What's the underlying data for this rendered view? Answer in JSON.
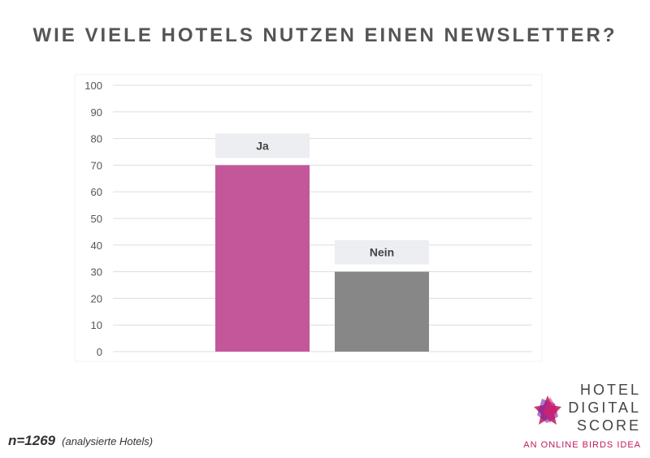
{
  "title": "WIE VIELE HOTELS NUTZEN EINEN NEWSLETTER?",
  "chart_data": {
    "type": "bar",
    "categories": [
      "Ja",
      "Nein"
    ],
    "values": [
      70,
      30
    ],
    "ylim": [
      0,
      100
    ],
    "yticks": [
      0,
      10,
      20,
      30,
      40,
      50,
      60,
      70,
      80,
      90,
      100
    ],
    "grid": true,
    "legend": "none",
    "colors": [
      "#c4579a",
      "#878787"
    ],
    "label_box_color": "#eceef1"
  },
  "footnote": {
    "n": "n=1269",
    "description": "(analysierte Hotels)"
  },
  "logo": {
    "line1": "HOTEL",
    "line2": "DIGITAL",
    "line3": "SCORE",
    "tagline": "AN ONLINE BIRDS IDEA"
  }
}
